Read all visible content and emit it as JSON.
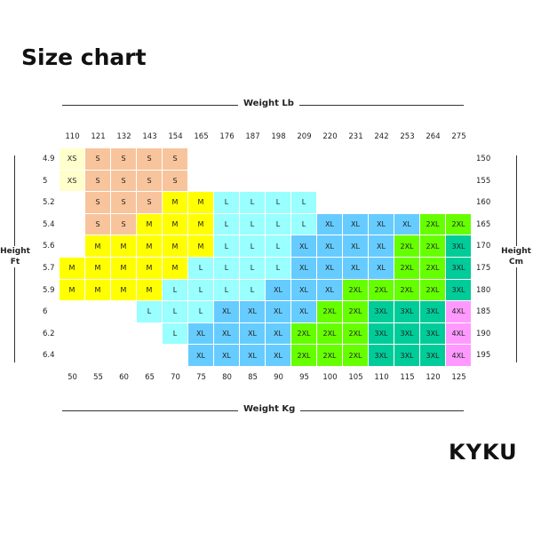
{
  "title": "Size chart",
  "brand": "KYKU",
  "weight_lb_label": "Weight Lb",
  "weight_kg_label": "Weight Kg",
  "height_ft_label": [
    "Height",
    "Ft"
  ],
  "height_cm_label": [
    "Height",
    "Cm"
  ],
  "weight_lb": [
    "110",
    "121",
    "132",
    "143",
    "154",
    "165",
    "176",
    "187",
    "198",
    "209",
    "220",
    "231",
    "242",
    "253",
    "264",
    "275"
  ],
  "weight_kg": [
    "50",
    "55",
    "60",
    "65",
    "70",
    "75",
    "80",
    "85",
    "90",
    "95",
    "100",
    "105",
    "110",
    "115",
    "120",
    "125"
  ],
  "height_ft": [
    "4.9",
    "5",
    "5.2",
    "5.4",
    "5.6",
    "5.7",
    "5.9",
    "6",
    "6.2",
    "6.4"
  ],
  "height_cm": [
    "150",
    "155",
    "160",
    "165",
    "170",
    "175",
    "180",
    "185",
    "190",
    "195"
  ],
  "size_colors": {
    "XS": "#ffffcc",
    "S": "#f8c49c",
    "M": "#ffff00",
    "L": "#99ffff",
    "XL": "#66ccff",
    "2XL": "#66ff00",
    "3XL": "#00cc99",
    "4XL": "#ff99ff"
  },
  "grid": [
    [
      "XS",
      "S",
      "S",
      "S",
      "S",
      "",
      "",
      "",
      "",
      "",
      "",
      "",
      "",
      "",
      "",
      ""
    ],
    [
      "XS",
      "S",
      "S",
      "S",
      "S",
      "",
      "",
      "",
      "",
      "",
      "",
      "",
      "",
      "",
      "",
      ""
    ],
    [
      "",
      "S",
      "S",
      "S",
      "M",
      "M",
      "L",
      "L",
      "L",
      "L",
      "",
      "",
      "",
      "",
      "",
      ""
    ],
    [
      "",
      "S",
      "S",
      "M",
      "M",
      "M",
      "L",
      "L",
      "L",
      "L",
      "XL",
      "XL",
      "XL",
      "XL",
      "2XL",
      "2XL"
    ],
    [
      "",
      "M",
      "M",
      "M",
      "M",
      "M",
      "L",
      "L",
      "L",
      "XL",
      "XL",
      "XL",
      "XL",
      "2XL",
      "2XL",
      "3XL"
    ],
    [
      "M",
      "M",
      "M",
      "M",
      "M",
      "L",
      "L",
      "L",
      "L",
      "XL",
      "XL",
      "XL",
      "XL",
      "2XL",
      "2XL",
      "3XL"
    ],
    [
      "M",
      "M",
      "M",
      "M",
      "L",
      "L",
      "L",
      "L",
      "XL",
      "XL",
      "XL",
      "2XL",
      "2XL",
      "2XL",
      "2XL",
      "3XL"
    ],
    [
      "",
      "",
      "",
      "L",
      "L",
      "L",
      "XL",
      "XL",
      "XL",
      "XL",
      "2XL",
      "2XL",
      "3XL",
      "3XL",
      "3XL",
      "4XL"
    ],
    [
      "",
      "",
      "",
      "",
      "L",
      "XL",
      "XL",
      "XL",
      "XL",
      "2XL",
      "2XL",
      "2XL",
      "3XL",
      "3XL",
      "3XL",
      "4XL"
    ],
    [
      "",
      "",
      "",
      "",
      "",
      "XL",
      "XL",
      "XL",
      "XL",
      "2XL",
      "2XL",
      "2XL",
      "3XL",
      "3XL",
      "3XL",
      "4XL"
    ]
  ]
}
